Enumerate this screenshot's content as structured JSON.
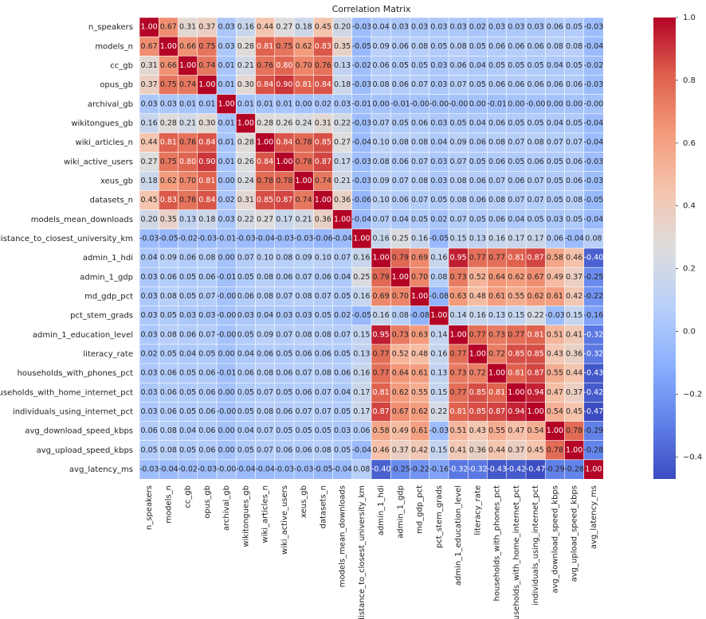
{
  "chart_data": {
    "type": "heatmap",
    "title": "Correlation Matrix",
    "colormap": "coolwarm",
    "categories": [
      "n_speakers",
      "models_n",
      "cc_gb",
      "opus_gb",
      "archival_gb",
      "wikitongues_gb",
      "wiki_articles_n",
      "wiki_active_users",
      "xeus_gb",
      "datasets_n",
      "models_mean_downloads",
      "distance_to_closest_university_km",
      "admin_1_hdi",
      "admin_1_gdp",
      "md_gdp_pct",
      "pct_stem_grads",
      "admin_1_education_level",
      "literacy_rate",
      "households_with_phones_pct",
      "households_with_home_internet_pct",
      "individuals_using_internet_pct",
      "avg_download_speed_kbps",
      "avg_upload_speed_kbps",
      "avg_latency_ms"
    ],
    "values": [
      [
        1,
        0.67,
        0.31,
        0.37,
        0.03,
        0.16,
        0.44,
        0.27,
        0.18,
        0.45,
        0.2,
        -0.03,
        0.04,
        0.03,
        0.03,
        0.03,
        0.03,
        0.02,
        0.03,
        0.03,
        0.03,
        0.06,
        0.05,
        -0.03
      ],
      [
        0.67,
        1,
        0.66,
        0.75,
        0.03,
        0.28,
        0.81,
        0.75,
        0.62,
        0.83,
        0.35,
        -0.05,
        0.09,
        0.06,
        0.08,
        0.05,
        0.08,
        0.05,
        0.06,
        0.06,
        0.06,
        0.08,
        0.08,
        -0.04
      ],
      [
        0.31,
        0.66,
        1,
        0.74,
        0.01,
        0.21,
        0.76,
        0.8,
        0.7,
        0.76,
        0.13,
        -0.02,
        0.06,
        0.05,
        0.05,
        0.03,
        0.06,
        0.04,
        0.05,
        0.05,
        0.05,
        0.04,
        0.05,
        -0.02
      ],
      [
        0.37,
        0.75,
        0.74,
        1,
        0.01,
        0.3,
        0.84,
        0.9,
        0.81,
        0.84,
        0.18,
        -0.03,
        0.08,
        0.06,
        0.07,
        0.03,
        0.07,
        0.05,
        0.06,
        0.06,
        0.06,
        0.06,
        0.06,
        -0.03
      ],
      [
        0.03,
        0.03,
        0.01,
        0.01,
        1,
        0.01,
        0.01,
        0.01,
        0,
        0.02,
        0.03,
        -0.01,
        0,
        -0.01,
        0,
        0,
        0,
        0,
        -0.01,
        0,
        0,
        0,
        0,
        0
      ],
      [
        0.16,
        0.28,
        0.21,
        0.3,
        0.01,
        1,
        0.28,
        0.26,
        0.24,
        0.31,
        0.22,
        -0.03,
        0.07,
        0.05,
        0.06,
        0.03,
        0.05,
        0.04,
        0.06,
        0.05,
        0.05,
        0.04,
        0.05,
        -0.04
      ],
      [
        0.44,
        0.81,
        0.76,
        0.84,
        0.01,
        0.28,
        1,
        0.84,
        0.78,
        0.85,
        0.27,
        -0.04,
        0.1,
        0.08,
        0.08,
        0.04,
        0.09,
        0.06,
        0.08,
        0.07,
        0.08,
        0.07,
        0.07,
        -0.04
      ],
      [
        0.27,
        0.75,
        0.8,
        0.9,
        0.01,
        0.26,
        0.84,
        1,
        0.78,
        0.87,
        0.17,
        -0.03,
        0.08,
        0.06,
        0.07,
        0.03,
        0.07,
        0.05,
        0.06,
        0.05,
        0.06,
        0.05,
        0.06,
        -0.03
      ],
      [
        0.18,
        0.62,
        0.7,
        0.81,
        0,
        0.24,
        0.78,
        0.78,
        1,
        0.74,
        0.21,
        -0.03,
        0.09,
        0.07,
        0.08,
        0.03,
        0.08,
        0.06,
        0.07,
        0.06,
        0.07,
        0.05,
        0.06,
        -0.03
      ],
      [
        0.45,
        0.83,
        0.76,
        0.84,
        0.02,
        0.31,
        0.85,
        0.87,
        0.74,
        1,
        0.36,
        -0.06,
        0.1,
        0.06,
        0.07,
        0.05,
        0.08,
        0.06,
        0.08,
        0.07,
        0.07,
        0.05,
        0.08,
        -0.05
      ],
      [
        0.2,
        0.35,
        0.13,
        0.18,
        0.03,
        0.22,
        0.27,
        0.17,
        0.21,
        0.36,
        1,
        -0.04,
        0.07,
        0.04,
        0.05,
        0.02,
        0.07,
        0.05,
        0.06,
        0.04,
        0.05,
        0.03,
        0.05,
        -0.04
      ],
      [
        -0.03,
        -0.05,
        -0.02,
        -0.03,
        -0.01,
        -0.03,
        -0.04,
        -0.03,
        -0.03,
        -0.06,
        -0.04,
        1,
        0.16,
        0.25,
        0.16,
        -0.05,
        0.15,
        0.13,
        0.16,
        0.17,
        0.17,
        0.06,
        -0.04,
        0.08
      ],
      [
        0.04,
        0.09,
        0.06,
        0.08,
        0,
        0.07,
        0.1,
        0.08,
        0.09,
        0.1,
        0.07,
        0.16,
        1,
        0.79,
        0.69,
        0.16,
        0.95,
        0.77,
        0.77,
        0.81,
        0.87,
        0.58,
        0.46,
        -0.4
      ],
      [
        0.03,
        0.06,
        0.05,
        0.06,
        -0.01,
        0.05,
        0.08,
        0.06,
        0.07,
        0.06,
        0.04,
        0.25,
        0.79,
        1,
        0.7,
        0.08,
        0.73,
        0.52,
        0.64,
        0.62,
        0.67,
        0.49,
        0.37,
        -0.25
      ],
      [
        0.03,
        0.08,
        0.05,
        0.07,
        0,
        0.06,
        0.08,
        0.07,
        0.08,
        0.07,
        0.05,
        0.16,
        0.69,
        0.7,
        1,
        -0.08,
        0.63,
        0.48,
        0.61,
        0.55,
        0.62,
        0.61,
        0.42,
        -0.22
      ],
      [
        0.03,
        0.05,
        0.03,
        0.03,
        0,
        0.03,
        0.04,
        0.03,
        0.03,
        0.05,
        0.02,
        -0.05,
        0.16,
        0.08,
        -0.08,
        1,
        0.14,
        0.16,
        0.13,
        0.15,
        0.22,
        -0.03,
        0.15,
        -0.16
      ],
      [
        0.03,
        0.08,
        0.06,
        0.07,
        0,
        0.05,
        0.09,
        0.07,
        0.08,
        0.08,
        0.07,
        0.15,
        0.95,
        0.73,
        0.63,
        0.14,
        1,
        0.77,
        0.73,
        0.77,
        0.81,
        0.51,
        0.41,
        -0.32
      ],
      [
        0.02,
        0.05,
        0.04,
        0.05,
        0,
        0.04,
        0.06,
        0.05,
        0.06,
        0.06,
        0.05,
        0.13,
        0.77,
        0.52,
        0.48,
        0.16,
        0.77,
        1,
        0.72,
        0.85,
        0.85,
        0.43,
        0.36,
        -0.32
      ],
      [
        0.03,
        0.06,
        0.05,
        0.06,
        -0.01,
        0.06,
        0.08,
        0.06,
        0.07,
        0.08,
        0.06,
        0.16,
        0.77,
        0.64,
        0.61,
        0.13,
        0.73,
        0.72,
        1,
        0.81,
        0.87,
        0.55,
        0.44,
        -0.43
      ],
      [
        0.03,
        0.06,
        0.05,
        0.06,
        0,
        0.05,
        0.07,
        0.05,
        0.06,
        0.07,
        0.04,
        0.17,
        0.81,
        0.62,
        0.55,
        0.15,
        0.77,
        0.85,
        0.81,
        1,
        0.94,
        0.47,
        0.37,
        -0.42
      ],
      [
        0.03,
        0.06,
        0.05,
        0.06,
        0,
        0.05,
        0.08,
        0.06,
        0.07,
        0.07,
        0.05,
        0.17,
        0.87,
        0.67,
        0.62,
        0.22,
        0.81,
        0.85,
        0.87,
        0.94,
        1,
        0.54,
        0.45,
        -0.47
      ],
      [
        0.06,
        0.08,
        0.04,
        0.06,
        0,
        0.04,
        0.07,
        0.05,
        0.05,
        0.05,
        0.03,
        0.06,
        0.58,
        0.49,
        0.61,
        -0.03,
        0.51,
        0.43,
        0.55,
        0.47,
        0.54,
        1,
        0.78,
        -0.29
      ],
      [
        0.05,
        0.08,
        0.05,
        0.06,
        0,
        0.05,
        0.07,
        0.06,
        0.06,
        0.08,
        0.05,
        -0.04,
        0.46,
        0.37,
        0.42,
        0.15,
        0.41,
        0.36,
        0.44,
        0.37,
        0.45,
        0.78,
        1,
        -0.28
      ],
      [
        -0.03,
        -0.04,
        -0.02,
        -0.03,
        0,
        -0.04,
        -0.04,
        -0.03,
        -0.03,
        -0.05,
        -0.04,
        0.08,
        -0.4,
        -0.25,
        -0.22,
        -0.16,
        -0.32,
        -0.32,
        -0.43,
        -0.42,
        -0.47,
        -0.29,
        -0.28,
        1
      ]
    ],
    "value_labels": [
      [
        "1.00",
        "0.67",
        "0.31",
        "0.37",
        "0.03",
        "0.16",
        "0.44",
        "0.27",
        "0.18",
        "0.45",
        "0.20",
        "-0.03",
        "0.04",
        "0.03",
        "0.03",
        "0.03",
        "0.03",
        "0.02",
        "0.03",
        "0.03",
        "0.03",
        "0.06",
        "0.05",
        "-0.03"
      ],
      [
        "0.67",
        "1.00",
        "0.66",
        "0.75",
        "0.03",
        "0.28",
        "0.81",
        "0.75",
        "0.62",
        "0.83",
        "0.35",
        "-0.05",
        "0.09",
        "0.06",
        "0.08",
        "0.05",
        "0.08",
        "0.05",
        "0.06",
        "0.06",
        "0.06",
        "0.08",
        "0.08",
        "-0.04"
      ],
      [
        "0.31",
        "0.66",
        "1.00",
        "0.74",
        "0.01",
        "0.21",
        "0.76",
        "0.80",
        "0.70",
        "0.76",
        "0.13",
        "-0.02",
        "0.06",
        "0.05",
        "0.05",
        "0.03",
        "0.06",
        "0.04",
        "0.05",
        "0.05",
        "0.05",
        "0.04",
        "0.05",
        "-0.02"
      ],
      [
        "0.37",
        "0.75",
        "0.74",
        "1.00",
        "0.01",
        "0.30",
        "0.84",
        "0.90",
        "0.81",
        "0.84",
        "0.18",
        "-0.03",
        "0.08",
        "0.06",
        "0.07",
        "0.03",
        "0.07",
        "0.05",
        "0.06",
        "0.06",
        "0.06",
        "0.06",
        "0.06",
        "-0.03"
      ],
      [
        "0.03",
        "0.03",
        "0.01",
        "0.01",
        "1.00",
        "0.01",
        "0.01",
        "0.01",
        "0.00",
        "0.02",
        "0.03",
        "-0.01",
        "0.00",
        "-0.01",
        "-0.00",
        "-0.00",
        "-0.00",
        "0.00",
        "-0.01",
        "0.00",
        "-0.00",
        "0.00",
        "0.00",
        "-0.00"
      ],
      [
        "0.16",
        "0.28",
        "0.21",
        "0.30",
        "0.01",
        "1.00",
        "0.28",
        "0.26",
        "0.24",
        "0.31",
        "0.22",
        "-0.03",
        "0.07",
        "0.05",
        "0.06",
        "0.03",
        "0.05",
        "0.04",
        "0.06",
        "0.05",
        "0.05",
        "0.04",
        "0.05",
        "-0.04"
      ],
      [
        "0.44",
        "0.81",
        "0.76",
        "0.84",
        "0.01",
        "0.28",
        "1.00",
        "0.84",
        "0.78",
        "0.85",
        "0.27",
        "-0.04",
        "0.10",
        "0.08",
        "0.08",
        "0.04",
        "0.09",
        "0.06",
        "0.08",
        "0.07",
        "0.08",
        "0.07",
        "0.07",
        "-0.04"
      ],
      [
        "0.27",
        "0.75",
        "0.80",
        "0.90",
        "0.01",
        "0.26",
        "0.84",
        "1.00",
        "0.78",
        "0.87",
        "0.17",
        "-0.03",
        "0.08",
        "0.06",
        "0.07",
        "0.03",
        "0.07",
        "0.05",
        "0.06",
        "0.05",
        "0.06",
        "0.05",
        "0.06",
        "-0.03"
      ],
      [
        "0.18",
        "0.62",
        "0.70",
        "0.81",
        "0.00",
        "0.24",
        "0.78",
        "0.78",
        "1.00",
        "0.74",
        "0.21",
        "-0.03",
        "0.09",
        "0.07",
        "0.08",
        "0.03",
        "0.08",
        "0.06",
        "0.07",
        "0.06",
        "0.07",
        "0.05",
        "0.06",
        "-0.03"
      ],
      [
        "0.45",
        "0.83",
        "0.76",
        "0.84",
        "0.02",
        "0.31",
        "0.85",
        "0.87",
        "0.74",
        "1.00",
        "0.36",
        "-0.06",
        "0.10",
        "0.06",
        "0.07",
        "0.05",
        "0.08",
        "0.06",
        "0.08",
        "0.07",
        "0.07",
        "0.05",
        "0.08",
        "-0.05"
      ],
      [
        "0.20",
        "0.35",
        "0.13",
        "0.18",
        "0.03",
        "0.22",
        "0.27",
        "0.17",
        "0.21",
        "0.36",
        "1.00",
        "-0.04",
        "0.07",
        "0.04",
        "0.05",
        "0.02",
        "0.07",
        "0.05",
        "0.06",
        "0.04",
        "0.05",
        "0.03",
        "0.05",
        "-0.04"
      ],
      [
        "-0.03",
        "-0.05",
        "-0.02",
        "-0.03",
        "-0.01",
        "-0.03",
        "-0.04",
        "-0.03",
        "-0.03",
        "-0.06",
        "-0.04",
        "1.00",
        "0.16",
        "0.25",
        "0.16",
        "-0.05",
        "0.15",
        "0.13",
        "0.16",
        "0.17",
        "0.17",
        "0.06",
        "-0.04",
        "0.08"
      ],
      [
        "0.04",
        "0.09",
        "0.06",
        "0.08",
        "0.00",
        "0.07",
        "0.10",
        "0.08",
        "0.09",
        "0.10",
        "0.07",
        "0.16",
        "1.00",
        "0.79",
        "0.69",
        "0.16",
        "0.95",
        "0.77",
        "0.77",
        "0.81",
        "0.87",
        "0.58",
        "0.46",
        "-0.40"
      ],
      [
        "0.03",
        "0.06",
        "0.05",
        "0.06",
        "-0.01",
        "0.05",
        "0.08",
        "0.06",
        "0.07",
        "0.06",
        "0.04",
        "0.25",
        "0.79",
        "1.00",
        "0.70",
        "0.08",
        "0.73",
        "0.52",
        "0.64",
        "0.62",
        "0.67",
        "0.49",
        "0.37",
        "-0.25"
      ],
      [
        "0.03",
        "0.08",
        "0.05",
        "0.07",
        "-0.00",
        "0.06",
        "0.08",
        "0.07",
        "0.08",
        "0.07",
        "0.05",
        "0.16",
        "0.69",
        "0.70",
        "1.00",
        "-0.08",
        "0.63",
        "0.48",
        "0.61",
        "0.55",
        "0.62",
        "0.61",
        "0.42",
        "-0.22"
      ],
      [
        "0.03",
        "0.05",
        "0.03",
        "0.03",
        "-0.00",
        "0.03",
        "0.04",
        "0.03",
        "0.03",
        "0.05",
        "0.02",
        "-0.05",
        "0.16",
        "0.08",
        "-0.08",
        "1.00",
        "0.14",
        "0.16",
        "0.13",
        "0.15",
        "0.22",
        "-0.03",
        "0.15",
        "-0.16"
      ],
      [
        "0.03",
        "0.08",
        "0.06",
        "0.07",
        "-0.00",
        "0.05",
        "0.09",
        "0.07",
        "0.08",
        "0.08",
        "0.07",
        "0.15",
        "0.95",
        "0.73",
        "0.63",
        "0.14",
        "1.00",
        "0.77",
        "0.73",
        "0.77",
        "0.81",
        "0.51",
        "0.41",
        "-0.32"
      ],
      [
        "0.02",
        "0.05",
        "0.04",
        "0.05",
        "0.00",
        "0.04",
        "0.06",
        "0.05",
        "0.06",
        "0.06",
        "0.05",
        "0.13",
        "0.77",
        "0.52",
        "0.48",
        "0.16",
        "0.77",
        "1.00",
        "0.72",
        "0.85",
        "0.85",
        "0.43",
        "0.36",
        "-0.32"
      ],
      [
        "0.03",
        "0.06",
        "0.05",
        "0.06",
        "-0.01",
        "0.06",
        "0.08",
        "0.06",
        "0.07",
        "0.08",
        "0.06",
        "0.16",
        "0.77",
        "0.64",
        "0.61",
        "0.13",
        "0.73",
        "0.72",
        "1.00",
        "0.81",
        "0.87",
        "0.55",
        "0.44",
        "-0.43"
      ],
      [
        "0.03",
        "0.06",
        "0.05",
        "0.06",
        "0.00",
        "0.05",
        "0.07",
        "0.05",
        "0.06",
        "0.07",
        "0.04",
        "0.17",
        "0.81",
        "0.62",
        "0.55",
        "0.15",
        "0.77",
        "0.85",
        "0.81",
        "1.00",
        "0.94",
        "0.47",
        "0.37",
        "-0.42"
      ],
      [
        "0.03",
        "0.06",
        "0.05",
        "0.06",
        "-0.00",
        "0.05",
        "0.08",
        "0.06",
        "0.07",
        "0.07",
        "0.05",
        "0.17",
        "0.87",
        "0.67",
        "0.62",
        "0.22",
        "0.81",
        "0.85",
        "0.87",
        "0.94",
        "1.00",
        "0.54",
        "0.45",
        "-0.47"
      ],
      [
        "0.06",
        "0.08",
        "0.04",
        "0.06",
        "0.00",
        "0.04",
        "0.07",
        "0.05",
        "0.05",
        "0.05",
        "0.03",
        "0.06",
        "0.58",
        "0.49",
        "0.61",
        "-0.03",
        "0.51",
        "0.43",
        "0.55",
        "0.47",
        "0.54",
        "1.00",
        "0.78",
        "-0.29"
      ],
      [
        "0.05",
        "0.08",
        "0.05",
        "0.06",
        "0.00",
        "0.05",
        "0.07",
        "0.06",
        "0.06",
        "0.08",
        "0.05",
        "-0.04",
        "0.46",
        "0.37",
        "0.42",
        "0.15",
        "0.41",
        "0.36",
        "0.44",
        "0.37",
        "0.45",
        "0.78",
        "1.00",
        "-0.28"
      ],
      [
        "-0.03",
        "-0.04",
        "-0.02",
        "-0.03",
        "-0.00",
        "-0.04",
        "-0.04",
        "-0.03",
        "-0.03",
        "-0.05",
        "-0.04",
        "0.08",
        "-0.40",
        "-0.25",
        "-0.22",
        "-0.16",
        "-0.32",
        "-0.32",
        "-0.43",
        "-0.42",
        "-0.47",
        "-0.29",
        "-0.28",
        "1.00"
      ]
    ],
    "clim": [
      -0.47,
      1.0
    ],
    "cticks": [
      {
        "value": -0.4,
        "label": "−0.4"
      },
      {
        "value": -0.2,
        "label": "−0.2"
      },
      {
        "value": 0.0,
        "label": "0.0"
      },
      0.2,
      0.4,
      0.6,
      0.8,
      {
        "value": 1.0,
        "label": "1.0"
      }
    ]
  }
}
